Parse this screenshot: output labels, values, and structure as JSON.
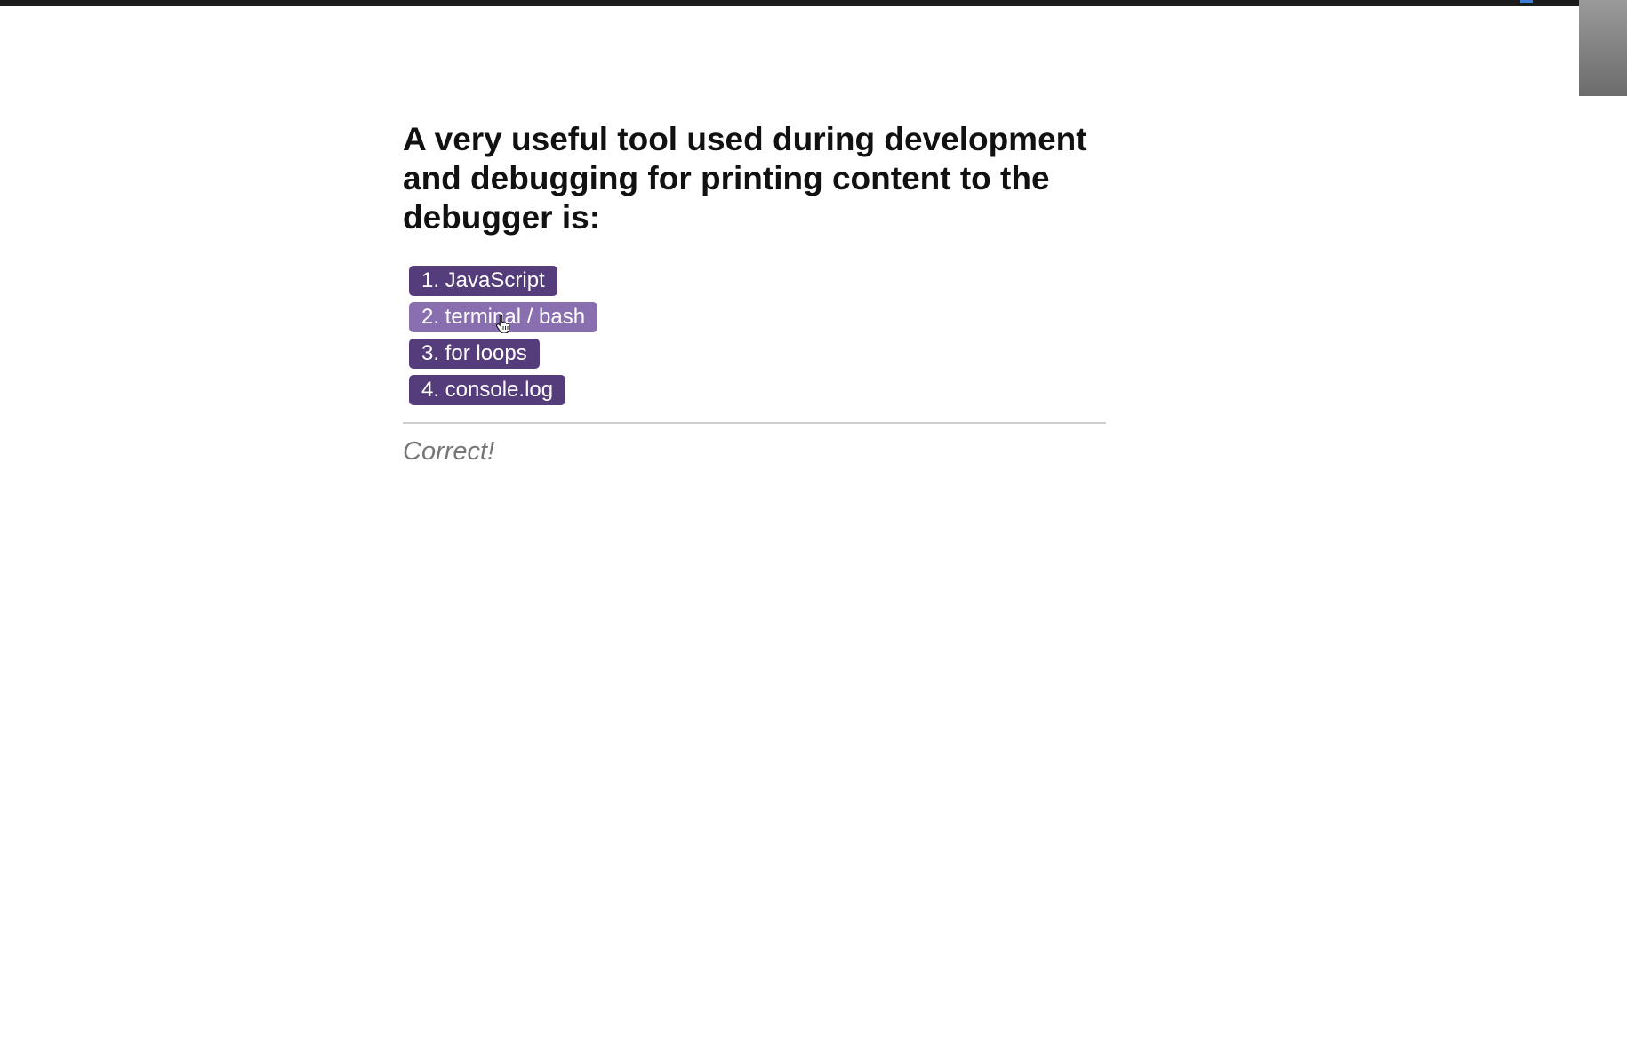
{
  "question": {
    "text": "A very useful tool used during development and debugging for printing content to the debugger is:"
  },
  "choices": [
    {
      "label": "1. JavaScript"
    },
    {
      "label": "2. terminal / bash"
    },
    {
      "label": "3. for loops"
    },
    {
      "label": "4. console.log"
    }
  ],
  "result": {
    "text": "Correct!"
  },
  "colors": {
    "choice_background": "#553c7b",
    "choice_hover_background": "#8a6fb0",
    "choice_text": "#ffffff",
    "result_text": "#777777",
    "top_bar": "#1c1c1c"
  },
  "icons": {
    "cursor": "hand-pointer-icon"
  }
}
